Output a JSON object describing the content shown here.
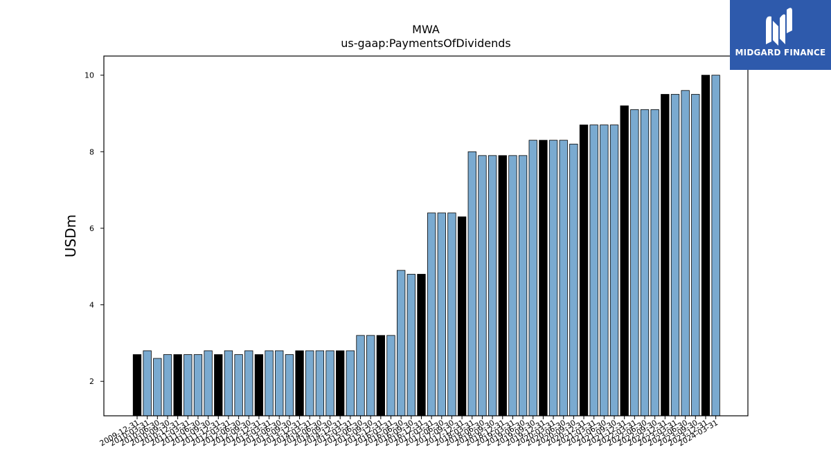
{
  "brand": {
    "name": "MIDGARD FINANCE",
    "color": "#2e5aac"
  },
  "colors": {
    "highlight": "#000000",
    "bar": "#7aaad0",
    "edge": "#000000"
  },
  "chart_data": {
    "type": "bar",
    "title": "MWA",
    "subtitle": "us-gaap:PaymentsOfDividends",
    "xlabel": "",
    "ylabel": "USDm",
    "ylim": [
      1.1,
      10.5
    ],
    "yticks": [
      2,
      4,
      6,
      8,
      10
    ],
    "grid": false,
    "categories": [
      "2009-12-31",
      "2010-03-31",
      "2010-06-30",
      "2010-09-30",
      "2010-12-31",
      "2011-03-31",
      "2011-06-30",
      "2011-09-30",
      "2011-12-31",
      "2012-03-31",
      "2012-06-30",
      "2012-09-30",
      "2012-12-31",
      "2013-03-31",
      "2013-06-30",
      "2013-09-30",
      "2013-12-31",
      "2014-03-31",
      "2014-06-30",
      "2014-09-30",
      "2014-12-31",
      "2015-03-31",
      "2015-06-30",
      "2015-09-30",
      "2015-12-31",
      "2016-03-31",
      "2016-06-30",
      "2016-09-30",
      "2016-12-31",
      "2017-03-31",
      "2017-06-30",
      "2017-09-30",
      "2017-12-31",
      "2018-03-31",
      "2018-06-30",
      "2018-09-30",
      "2018-12-31",
      "2019-03-31",
      "2019-06-30",
      "2019-09-30",
      "2019-12-31",
      "2020-03-31",
      "2020-06-30",
      "2020-09-30",
      "2020-12-31",
      "2021-03-31",
      "2021-06-30",
      "2021-09-30",
      "2021-12-31",
      "2022-03-31",
      "2022-06-30",
      "2022-09-30",
      "2022-12-31",
      "2023-03-31",
      "2023-06-30",
      "2023-09-30",
      "2023-12-31",
      "2024-03-31"
    ],
    "values": [
      2.7,
      2.8,
      2.6,
      2.7,
      2.7,
      2.7,
      2.7,
      2.8,
      2.7,
      2.8,
      2.7,
      2.8,
      2.7,
      2.8,
      2.8,
      2.7,
      2.8,
      2.8,
      2.8,
      2.8,
      2.8,
      2.8,
      3.2,
      3.2,
      3.2,
      3.2,
      4.9,
      4.8,
      4.8,
      6.4,
      6.4,
      6.4,
      6.3,
      8.0,
      7.9,
      7.9,
      7.9,
      7.9,
      7.9,
      8.3,
      8.3,
      8.3,
      8.3,
      8.2,
      8.7,
      8.7,
      8.7,
      8.7,
      9.2,
      9.1,
      9.1,
      9.1,
      9.5,
      9.5,
      9.6,
      9.5,
      10.0,
      10.0
    ],
    "highlighted": [
      0,
      4,
      8,
      12,
      16,
      20,
      24,
      28,
      32,
      36,
      40,
      44,
      48,
      52,
      56
    ]
  }
}
